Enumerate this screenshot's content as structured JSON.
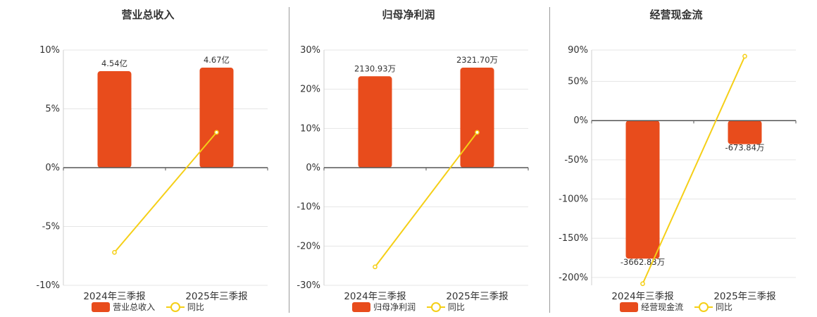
{
  "colors": {
    "bar": "#e84c1c",
    "line": "#f5cf17",
    "axis": "#555555",
    "grid": "#e6e6e6"
  },
  "chart_data": [
    {
      "type": "bar",
      "title": "营业总收入",
      "categories": [
        "2024年三季报",
        "2025年三季报"
      ],
      "ylim": [
        -10,
        10
      ],
      "yticks": [
        10,
        5,
        0,
        -5,
        -10
      ],
      "series": [
        {
          "name": "营业总收入",
          "kind": "bar",
          "values": [
            8.2,
            8.5
          ],
          "labels": [
            "4.54亿",
            "4.67亿"
          ]
        },
        {
          "name": "同比",
          "kind": "line",
          "values": [
            -7.2,
            3.0
          ]
        }
      ],
      "grid": true,
      "legend": "bottom"
    },
    {
      "type": "bar",
      "title": "归母净利润",
      "categories": [
        "2024年三季报",
        "2025年三季报"
      ],
      "ylim": [
        -30,
        30
      ],
      "yticks": [
        30,
        20,
        10,
        0,
        -10,
        -20,
        -30
      ],
      "series": [
        {
          "name": "归母净利润",
          "kind": "bar",
          "values": [
            23.3,
            25.5
          ],
          "labels": [
            "2130.93万",
            "2321.70万"
          ]
        },
        {
          "name": "同比",
          "kind": "line",
          "values": [
            -25.3,
            9.0
          ]
        }
      ],
      "grid": true,
      "legend": "bottom"
    },
    {
      "type": "bar",
      "title": "经营现金流",
      "categories": [
        "2024年三季报",
        "2025年三季报"
      ],
      "ylim": [
        -210,
        90
      ],
      "yticks": [
        90,
        50,
        0,
        -50,
        -100,
        -150,
        -200
      ],
      "series": [
        {
          "name": "经营现金流",
          "kind": "bar",
          "values": [
            -176,
            -30
          ],
          "labels": [
            "-3662.83万",
            "-673.84万"
          ]
        },
        {
          "name": "同比",
          "kind": "line",
          "values": [
            -208,
            82
          ]
        }
      ],
      "grid": true,
      "legend": "bottom"
    }
  ]
}
